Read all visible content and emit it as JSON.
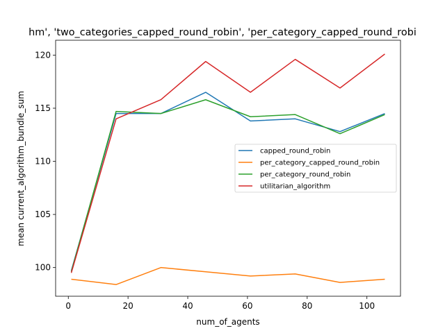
{
  "chart_data": {
    "type": "line",
    "title": "hm', 'two_categories_capped_round_robin', 'per_category_capped_round_robi",
    "xlabel": "num_of_agents",
    "ylabel": "mean current_algorithm_bundle_sum",
    "xlim": [
      -4.25,
      111.25
    ],
    "ylim": [
      97.3,
      121.4
    ],
    "xticks": [
      0,
      20,
      40,
      60,
      80,
      100
    ],
    "yticks": [
      100,
      105,
      110,
      115,
      120
    ],
    "grid": false,
    "legend_position": "center-right",
    "x": [
      1,
      16,
      31,
      46,
      61,
      76,
      91,
      106
    ],
    "series": [
      {
        "name": "capped_round_robin",
        "color": "#1f77b4",
        "values": [
          99.7,
          114.5,
          114.5,
          116.5,
          113.8,
          114.0,
          112.8,
          114.5
        ]
      },
      {
        "name": "per_category_capped_round_robin",
        "color": "#ff7f0e",
        "values": [
          98.9,
          98.4,
          100.0,
          99.6,
          99.2,
          99.4,
          98.6,
          98.9
        ]
      },
      {
        "name": "per_category_round_robin",
        "color": "#2ca02c",
        "values": [
          99.6,
          114.7,
          114.5,
          115.8,
          114.2,
          114.4,
          112.6,
          114.4
        ]
      },
      {
        "name": "utilitarian_algorithm",
        "color": "#d62728",
        "values": [
          99.5,
          114.0,
          115.8,
          119.4,
          116.5,
          119.6,
          116.9,
          120.1
        ]
      }
    ]
  }
}
